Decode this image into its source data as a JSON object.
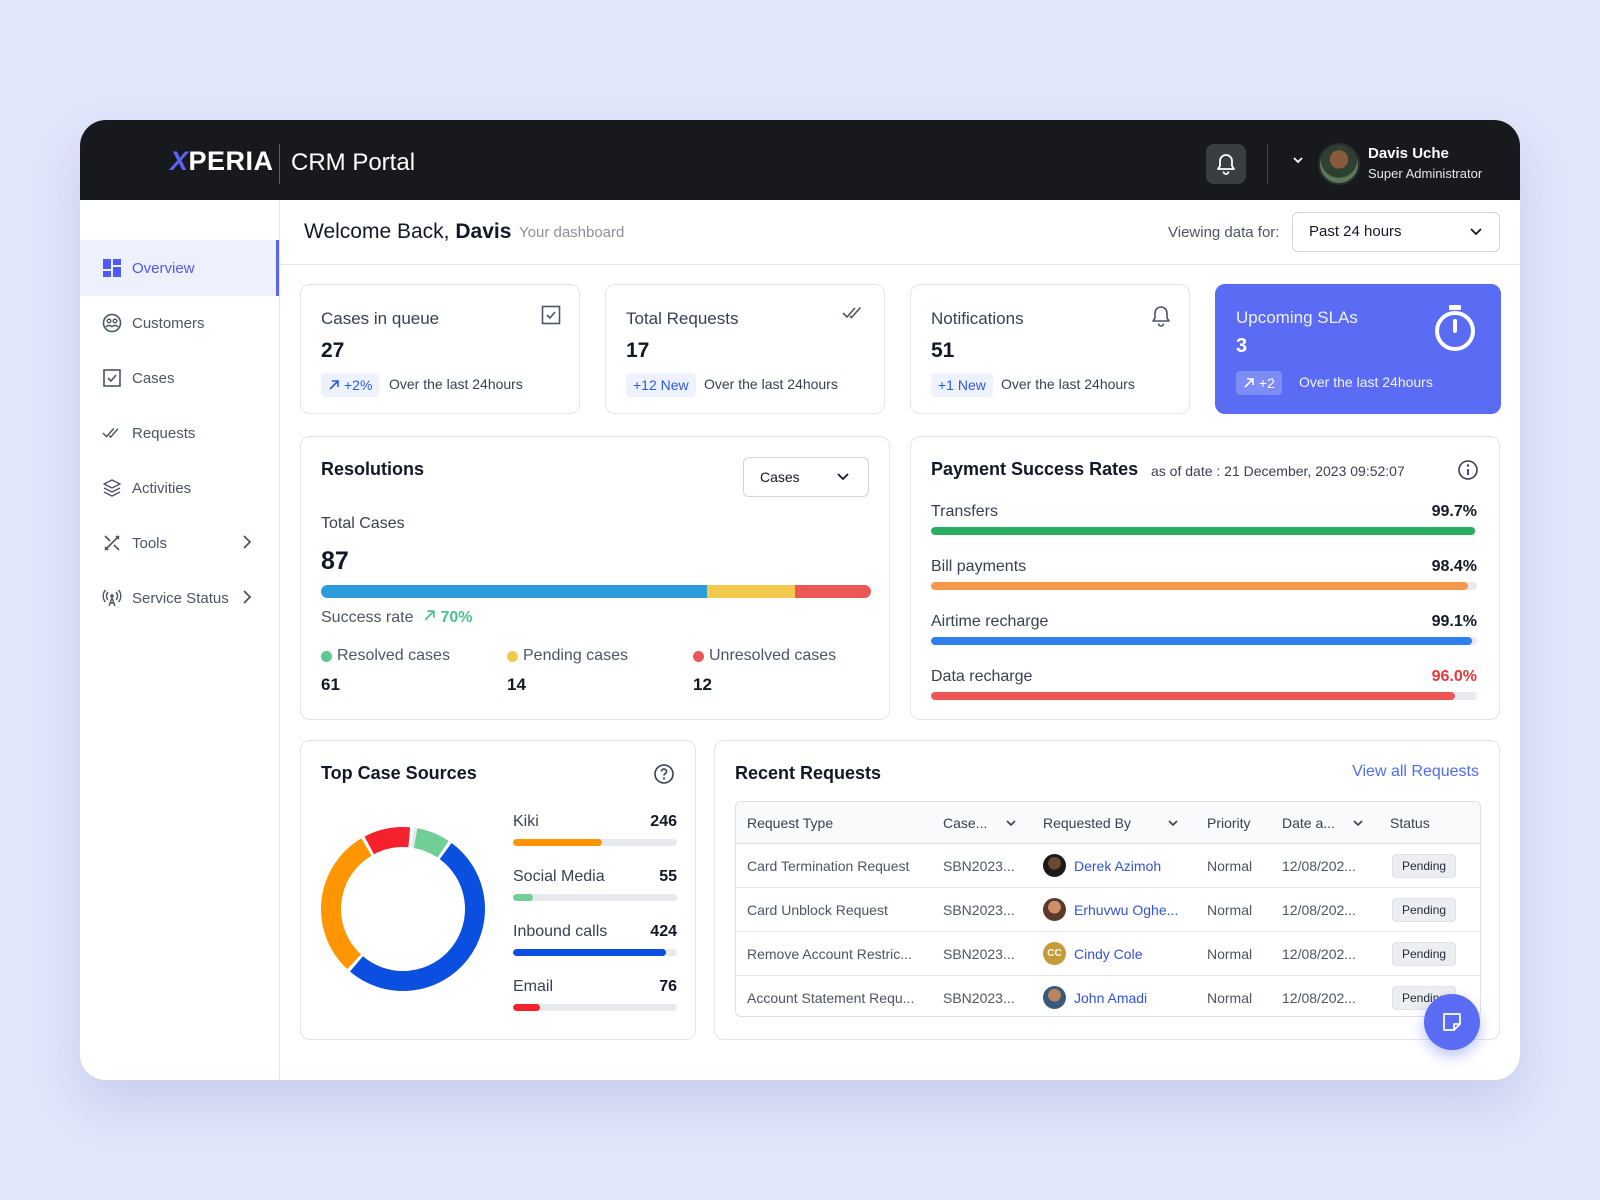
{
  "app": {
    "logo_accent": "X",
    "logo_rest": "PERIA",
    "portal_title": "CRM Portal"
  },
  "user": {
    "name": "Davis Uche",
    "role": "Super Administrator"
  },
  "sidebar": {
    "items": [
      {
        "label": "Overview",
        "icon": "grid-icon",
        "active": true
      },
      {
        "label": "Customers",
        "icon": "users-circle-icon"
      },
      {
        "label": "Cases",
        "icon": "checkbox-icon"
      },
      {
        "label": "Requests",
        "icon": "double-check-icon"
      },
      {
        "label": "Activities",
        "icon": "layers-icon"
      },
      {
        "label": "Tools",
        "icon": "tools-icon",
        "has_submenu": true
      },
      {
        "label": "Service Status",
        "icon": "signal-tower-icon",
        "has_submenu": true
      }
    ]
  },
  "header": {
    "welcome_prefix": "Welcome Back,",
    "welcome_name": "Davis",
    "subtitle": "Your dashboard",
    "viewing_label": "Viewing data for:",
    "range_value": "Past 24 hours"
  },
  "kpis": [
    {
      "title": "Cases in queue",
      "value": "27",
      "badge": "+2%",
      "badge_arrow": true,
      "note": "Over the last 24hours",
      "icon": "checkbox-icon"
    },
    {
      "title": "Total Requests",
      "value": "17",
      "badge": "+12 New",
      "note": "Over the last 24hours",
      "icon": "double-check-icon"
    },
    {
      "title": "Notifications",
      "value": "51",
      "badge": "+1 New",
      "note": "Over the last 24hours",
      "icon": "bell-icon"
    },
    {
      "title": "Upcoming SLAs",
      "value": "3",
      "badge": "+2",
      "badge_arrow": true,
      "note": "Over the last 24hours",
      "icon": "stopwatch-icon"
    }
  ],
  "resolutions": {
    "title": "Resolutions",
    "filter_value": "Cases",
    "total_label": "Total Cases",
    "total_value": "87",
    "success_label": "Success rate",
    "success_value": "70%",
    "segments": [
      {
        "name": "Resolved cases",
        "value": "61",
        "count": 61,
        "color": "#2d9cdb",
        "dot": "#5cc98e"
      },
      {
        "name": "Pending cases",
        "value": "14",
        "count": 14,
        "color": "#f2c94c",
        "dot": "#f2c94c"
      },
      {
        "name": "Unresolved cases",
        "value": "12",
        "count": 12,
        "color": "#eb5757",
        "dot": "#eb5757"
      }
    ]
  },
  "payment": {
    "title": "Payment Success Rates",
    "subtitle": "as of date : 21 December, 2023 09:52:07",
    "rows": [
      {
        "label": "Transfers",
        "value": "99.7%",
        "rate": 99.7,
        "color": "#27ae60",
        "value_color": "#111827"
      },
      {
        "label": "Bill payments",
        "value": "98.4%",
        "rate": 98.4,
        "color": "#f2994a",
        "value_color": "#111827"
      },
      {
        "label": "Airtime recharge",
        "value": "99.1%",
        "rate": 99.1,
        "color": "#2f80ed",
        "value_color": "#111827"
      },
      {
        "label": "Data recharge",
        "value": "96.0%",
        "rate": 96.0,
        "color": "#eb5757",
        "value_color": "#e5383b"
      }
    ]
  },
  "sources": {
    "title": "Top Case Sources",
    "items": [
      {
        "label": "Kiki",
        "value": "246",
        "count": 246,
        "color": "#ff9500"
      },
      {
        "label": "Social Media",
        "value": "55",
        "count": 55,
        "color": "#6fcf97"
      },
      {
        "label": "Inbound calls",
        "value": "424",
        "count": 424,
        "color": "#0a4fe0"
      },
      {
        "label": "Email",
        "value": "76",
        "count": 76,
        "color": "#f5222d"
      }
    ]
  },
  "requests": {
    "title": "Recent Requests",
    "view_all": "View all Requests",
    "columns": [
      "Request Type",
      "Case...",
      "Requested By",
      "Priority",
      "Date a...",
      "Status"
    ],
    "rows": [
      {
        "type": "Card Termination Request",
        "case": "SBN2023...",
        "by": "Derek Azimoh",
        "priority": "Normal",
        "date": "12/08/202...",
        "status": "Pending"
      },
      {
        "type": "Card Unblock Request",
        "case": "SBN2023...",
        "by": "Erhuvwu Oghe...",
        "priority": "Normal",
        "date": "12/08/202...",
        "status": "Pending"
      },
      {
        "type": "Remove Account Restric...",
        "case": "SBN2023...",
        "by": "Cindy Cole",
        "priority": "Normal",
        "date": "12/08/202...",
        "status": "Pending"
      },
      {
        "type": "Account Statement Requ...",
        "case": "SBN2023...",
        "by": "John Amadi",
        "priority": "Normal",
        "date": "12/08/202...",
        "status": "Pending"
      }
    ],
    "avatar_initials_3": "CC"
  }
}
